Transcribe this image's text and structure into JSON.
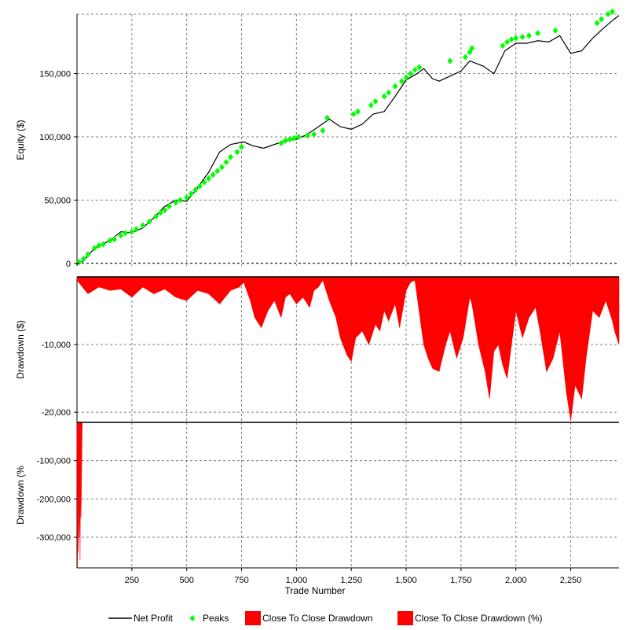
{
  "colors": {
    "net_profit": "#000000",
    "peaks": "#00ff00",
    "drawdown": "#ff0000",
    "grid": "#808080",
    "background": "#ffffff"
  },
  "chart_data": [
    {
      "type": "line",
      "ylabel": "Equity ($)",
      "xlabel": "",
      "xlim": [
        0,
        2470
      ],
      "ylim": [
        -2000,
        197000
      ],
      "y_ticks": [
        0,
        50000,
        100000,
        150000
      ],
      "y_tick_labels": [
        "0",
        "50,000",
        "100,000",
        "150,000"
      ],
      "grid": true,
      "series": [
        {
          "name": "Net Profit",
          "x": [
            0,
            30,
            80,
            150,
            200,
            250,
            300,
            350,
            400,
            450,
            500,
            550,
            600,
            650,
            700,
            760,
            800,
            850,
            900,
            950,
            1000,
            1050,
            1100,
            1150,
            1200,
            1250,
            1300,
            1350,
            1400,
            1450,
            1500,
            1550,
            1580,
            1620,
            1650,
            1700,
            1750,
            1790,
            1850,
            1900,
            1950,
            2000,
            2050,
            2100,
            2150,
            2200,
            2250,
            2300,
            2350,
            2400,
            2440,
            2470
          ],
          "y": [
            -1000,
            2000,
            12000,
            18000,
            25000,
            24000,
            28000,
            36000,
            45000,
            50000,
            49000,
            60000,
            72000,
            88000,
            94000,
            96000,
            93000,
            91000,
            94000,
            97000,
            98000,
            102000,
            108000,
            114000,
            108000,
            106000,
            110000,
            118000,
            120000,
            132000,
            145000,
            150000,
            154000,
            146000,
            144000,
            148000,
            152000,
            160000,
            156000,
            150000,
            168000,
            174000,
            174000,
            176000,
            175000,
            180000,
            166000,
            168000,
            178000,
            186000,
            192000,
            196000
          ]
        },
        {
          "name": "Peaks",
          "x": [
            10,
            30,
            50,
            80,
            100,
            120,
            150,
            170,
            200,
            220,
            250,
            270,
            300,
            330,
            360,
            380,
            400,
            420,
            450,
            470,
            500,
            520,
            540,
            560,
            580,
            600,
            620,
            640,
            660,
            680,
            700,
            730,
            750,
            930,
            950,
            970,
            990,
            1010,
            1050,
            1080,
            1120,
            1140,
            1260,
            1280,
            1340,
            1360,
            1400,
            1420,
            1450,
            1480,
            1500,
            1520,
            1540,
            1560,
            1700,
            1770,
            1790,
            1800,
            1940,
            1960,
            1980,
            2000,
            2030,
            2060,
            2100,
            2180,
            2370,
            2390,
            2420,
            2440
          ],
          "y": [
            1000,
            3500,
            7000,
            12000,
            14000,
            15000,
            18000,
            19000,
            22000,
            24000,
            25000,
            27000,
            30000,
            33000,
            37000,
            40000,
            42000,
            45000,
            48000,
            50000,
            52000,
            55000,
            58000,
            61000,
            64000,
            67000,
            70000,
            73000,
            76000,
            80000,
            84000,
            88000,
            92000,
            95000,
            97000,
            98000,
            99000,
            100000,
            101000,
            102000,
            105000,
            115000,
            118000,
            120000,
            125000,
            128000,
            132000,
            135000,
            140000,
            144000,
            147000,
            150000,
            153000,
            155000,
            160000,
            163000,
            167000,
            170000,
            172000,
            175000,
            177000,
            178000,
            179000,
            180000,
            182000,
            184000,
            190000,
            193000,
            197000,
            199000
          ]
        }
      ]
    },
    {
      "type": "area",
      "ylabel": "Drawdown ($)",
      "xlabel": "",
      "xlim": [
        0,
        2470
      ],
      "ylim": [
        -21500,
        0
      ],
      "y_ticks": [
        -10000,
        -20000
      ],
      "y_tick_labels": [
        "-10,000",
        "-20,000"
      ],
      "grid": true,
      "series": [
        {
          "name": "Close To Close Drawdown",
          "x": [
            0,
            50,
            100,
            150,
            200,
            250,
            300,
            350,
            400,
            450,
            500,
            550,
            600,
            650,
            700,
            740,
            760,
            790,
            810,
            840,
            870,
            900,
            930,
            950,
            970,
            1000,
            1030,
            1060,
            1080,
            1100,
            1120,
            1150,
            1180,
            1200,
            1230,
            1250,
            1270,
            1300,
            1330,
            1360,
            1380,
            1400,
            1420,
            1450,
            1470,
            1500,
            1520,
            1540,
            1580,
            1600,
            1620,
            1650,
            1680,
            1700,
            1730,
            1760,
            1790,
            1800,
            1830,
            1860,
            1880,
            1900,
            1920,
            1940,
            1960,
            1980,
            2000,
            2030,
            2060,
            2090,
            2110,
            2140,
            2170,
            2200,
            2230,
            2250,
            2270,
            2300,
            2320,
            2350,
            2380,
            2410,
            2440,
            2450,
            2470
          ],
          "y": [
            -500,
            -2500,
            -1500,
            -2000,
            -1800,
            -3000,
            -1500,
            -2500,
            -1800,
            -3000,
            -3500,
            -2000,
            -2500,
            -4000,
            -2000,
            -1500,
            -800,
            -3500,
            -6000,
            -7500,
            -5000,
            -3500,
            -6000,
            -3000,
            -2500,
            -4000,
            -3000,
            -4500,
            -2000,
            -1500,
            -500,
            -3500,
            -6000,
            -9000,
            -11500,
            -12500,
            -9000,
            -8000,
            -10000,
            -7000,
            -8000,
            -5000,
            -6500,
            -4000,
            -7500,
            -2000,
            -800,
            -500,
            -10000,
            -12000,
            -13500,
            -14000,
            -10000,
            -8000,
            -12000,
            -9000,
            -3000,
            -4000,
            -10000,
            -14000,
            -18000,
            -11000,
            -10000,
            -13000,
            -15000,
            -10000,
            -5000,
            -9000,
            -6000,
            -4500,
            -8000,
            -14000,
            -12000,
            -8000,
            -17000,
            -21200,
            -16000,
            -18000,
            -12000,
            -5000,
            -6000,
            -3500,
            -6500,
            -8000,
            -10000
          ]
        }
      ]
    },
    {
      "type": "area",
      "ylabel": "Drawdown (%",
      "xlabel": "Trade Number",
      "xlim": [
        0,
        2470
      ],
      "ylim": [
        -380000,
        0
      ],
      "y_ticks": [
        -100000,
        -200000,
        -300000
      ],
      "y_tick_labels": [
        "-100,000",
        "-200,000",
        "-300,000"
      ],
      "x_ticks": [
        250,
        500,
        750,
        1000,
        1250,
        1500,
        1750,
        2000,
        2250
      ],
      "x_tick_labels": [
        "250",
        "500",
        "750",
        "1,000",
        "1,250",
        "1,500",
        "1,750",
        "2,000",
        "2,250"
      ],
      "grid": true,
      "series": [
        {
          "name": "Close To Close Drawdown (%)",
          "x": [
            0,
            2,
            4,
            6,
            8,
            10,
            12,
            14,
            16,
            18,
            20,
            22,
            24
          ],
          "y": [
            -30000,
            -380000,
            -250000,
            -340000,
            -150000,
            -300000,
            -200000,
            -360000,
            -120000,
            -250000,
            -180000,
            -80000,
            0
          ]
        }
      ]
    }
  ],
  "legend": [
    {
      "label": "Net Profit",
      "symbol": "line",
      "color": "#000000"
    },
    {
      "label": "Peaks",
      "symbol": "diamond",
      "color": "#00ff00"
    },
    {
      "label": "Close To Close Drawdown",
      "symbol": "box",
      "color": "#ff0000"
    },
    {
      "label": "Close To Close Drawdown (%)",
      "symbol": "box",
      "color": "#ff0000"
    }
  ]
}
